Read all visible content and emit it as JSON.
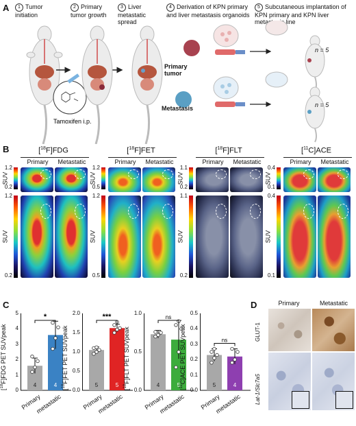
{
  "panels": {
    "a": "A",
    "b": "B",
    "c": "C",
    "d": "D"
  },
  "panel_a": {
    "steps": [
      {
        "num": "1",
        "text": "Tumor initiation"
      },
      {
        "num": "2",
        "text": "Primary tumor growth"
      },
      {
        "num": "3",
        "text": "Liver metastatic spread"
      },
      {
        "num": "4",
        "text": "Derivation of KPN primary and liver metastasis organoids"
      },
      {
        "num": "5",
        "text": "Subcutaneous implantation of KPN primary and KPN liver metastasis line"
      }
    ],
    "tamoxifen": "Tamoxifen i.p.",
    "primary_tumor": "Primary tumor",
    "metastasis": "Metastasis",
    "n_label": "n = 5",
    "colors": {
      "primary": "#a8424f",
      "metastasis": "#5a9fc4",
      "mouse": "#eeeeee"
    }
  },
  "panel_b": {
    "col_primary": "Primary",
    "col_metastatic": "Metastatic",
    "suv_label": "SUV",
    "tracers": [
      {
        "name": "[18F]FDG",
        "sup": "18",
        "elem": "F",
        "agent": "FDG",
        "top_max": "1.2",
        "top_min": "0.2",
        "bot_max": "1.2",
        "bot_min": "0.2"
      },
      {
        "name": "[18F]FET",
        "sup": "18",
        "elem": "F",
        "agent": "FET",
        "top_max": "1.2",
        "top_min": "0.5",
        "bot_max": "1.2",
        "bot_min": "0.5"
      },
      {
        "name": "[18F]FLT",
        "sup": "18",
        "elem": "F",
        "agent": "FLT",
        "top_max": "1.1",
        "top_min": "0.2",
        "bot_max": "1.1",
        "bot_min": "0.2"
      },
      {
        "name": "[11C]ACE",
        "sup": "11",
        "elem": "C",
        "agent": "ACE",
        "top_max": "0.4",
        "top_min": "0.1",
        "bot_max": "0.4",
        "bot_min": "0.1"
      }
    ]
  },
  "chart_data": [
    {
      "type": "bar",
      "ylabel": "[18F]FDG PET SUVpeak",
      "categories": [
        "Primary",
        "metastatic"
      ],
      "values": [
        1.6,
        3.6
      ],
      "errors": [
        0.5,
        0.9
      ],
      "points": [
        [
          1.2,
          1.5,
          1.9,
          2.2
        ],
        [
          2.7,
          3.4,
          4.1,
          4.4
        ]
      ],
      "n": [
        "4",
        "4"
      ],
      "colors": [
        "#a8a8a8",
        "#3a82c4"
      ],
      "ylim": [
        0,
        5
      ],
      "yticks": [
        "0",
        "1",
        "2",
        "3",
        "4",
        "5"
      ],
      "significance": "*"
    },
    {
      "type": "bar",
      "ylabel": "[18F]FET PET SUVpeak",
      "categories": [
        "Primary",
        "metastatic"
      ],
      "values": [
        1.05,
        1.62
      ],
      "errors": [
        0.08,
        0.1
      ],
      "points": [
        [
          0.95,
          1.0,
          1.05,
          1.1,
          1.12
        ],
        [
          1.5,
          1.58,
          1.62,
          1.7,
          1.78
        ]
      ],
      "n": [
        "5",
        "5"
      ],
      "colors": [
        "#a8a8a8",
        "#e02424"
      ],
      "ylim": [
        0,
        2.0
      ],
      "yticks": [
        "0.0",
        "0.5",
        "1.0",
        "1.5",
        "2.0"
      ],
      "significance": "***"
    },
    {
      "type": "bar",
      "ylabel": "[18F]FLT PET SUVpeak",
      "categories": [
        "Primary",
        "metastatic"
      ],
      "values": [
        0.73,
        0.66
      ],
      "errors": [
        0.05,
        0.25
      ],
      "points": [
        [
          0.7,
          0.72,
          0.75,
          0.76
        ],
        [
          0.3,
          0.5,
          0.8,
          0.85,
          0.9
        ]
      ],
      "n": [
        "4",
        "5"
      ],
      "colors": [
        "#a8a8a8",
        "#3cac3c"
      ],
      "ylim": [
        0,
        1.0
      ],
      "yticks": [
        "0.0",
        "0.5",
        "1.0"
      ],
      "significance": "ns"
    },
    {
      "type": "bar",
      "ylabel": "[11C]ACE PET SUVpeak",
      "categories": [
        "Primary",
        "metastatic"
      ],
      "values": [
        0.23,
        0.22
      ],
      "errors": [
        0.04,
        0.05
      ],
      "points": [
        [
          0.18,
          0.21,
          0.23,
          0.25,
          0.27
        ],
        [
          0.18,
          0.2,
          0.25,
          0.27
        ]
      ],
      "n": [
        "5",
        "4"
      ],
      "colors": [
        "#a8a8a8",
        "#8e3fb0"
      ],
      "ylim": [
        0,
        0.5
      ],
      "yticks": [
        "0.0",
        "0.1",
        "0.2",
        "0.3",
        "0.4",
        "0.5"
      ],
      "significance": "ns"
    }
  ],
  "panel_d": {
    "col_primary": "Primary",
    "col_metastatic": "Metastatic",
    "row1": "GLUT-1",
    "row2": "Lat-1/Slc7a5"
  }
}
